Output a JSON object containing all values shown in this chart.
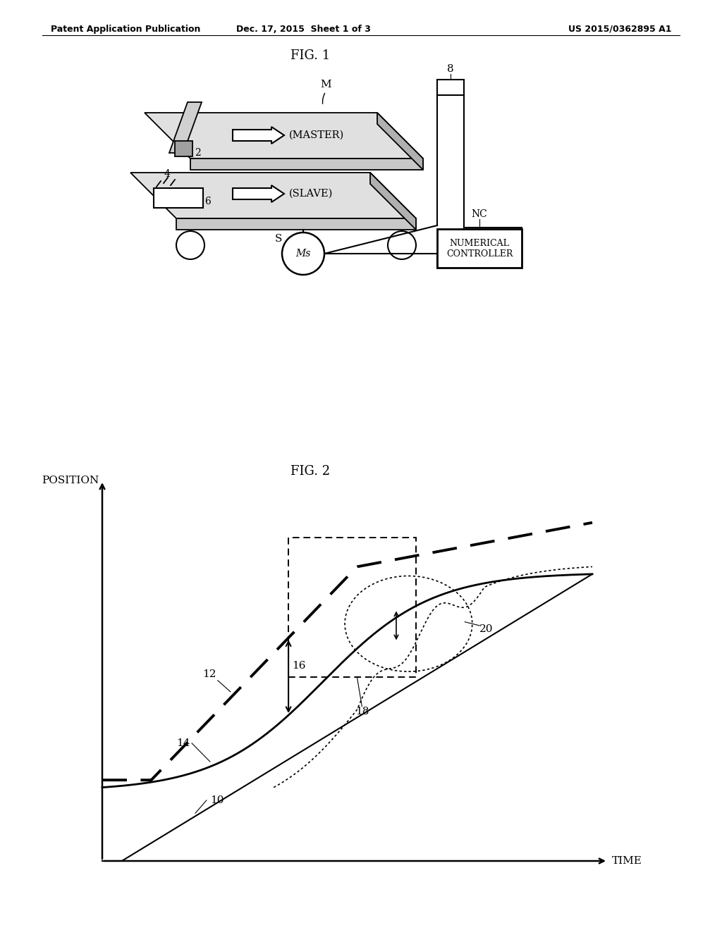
{
  "background_color": "#ffffff",
  "header_left": "Patent Application Publication",
  "header_mid": "Dec. 17, 2015  Sheet 1 of 3",
  "header_right": "US 2015/0362895 A1",
  "fig1_title": "FIG. 1",
  "fig2_title": "FIG. 2",
  "label_M": "M",
  "label_8": "8",
  "label_2": "2",
  "label_4": "4",
  "label_6": "6",
  "label_S": "S",
  "label_Ms": "Ms",
  "label_NC": "NC",
  "label_MASTER": "(MASTER)",
  "label_SLAVE": "(SLAVE)",
  "label_NUMERICAL_CONTROLLER": "NUMERICAL\nCONTROLLER",
  "label_POSITION": "POSITION",
  "label_TIME": "TIME",
  "label_10": "10",
  "label_12": "12",
  "label_14": "14",
  "label_16": "16",
  "label_18": "18",
  "label_20": "20"
}
